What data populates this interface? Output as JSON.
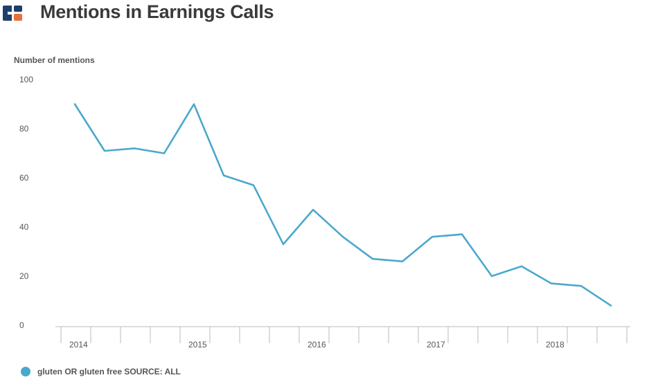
{
  "header": {
    "title": "Mentions in Earnings Calls",
    "logo_icon": "chart-logo-icon",
    "logo_colors": [
      "#1f3f6b",
      "#e8703a"
    ]
  },
  "colors": {
    "series": "#4aa8cc",
    "axis": "#bbbbbb",
    "text": "#555555"
  },
  "chart_data": {
    "type": "line",
    "title": "Mentions in Earnings Calls",
    "xlabel": "",
    "ylabel": "Number of mentions",
    "ylim": [
      0,
      100
    ],
    "yticks": [
      0,
      20,
      40,
      60,
      80,
      100
    ],
    "xticks": [
      "2014",
      "2015",
      "2016",
      "2017",
      "2018"
    ],
    "grid": false,
    "legend_position": "bottom-left",
    "series": [
      {
        "name": "gluten OR gluten free SOURCE: ALL",
        "color": "#4aa8cc",
        "x": [
          "2014 Q1",
          "2014 Q2",
          "2014 Q3",
          "2014 Q4",
          "2015 Q1",
          "2015 Q2",
          "2015 Q3",
          "2015 Q4",
          "2016 Q1",
          "2016 Q2",
          "2016 Q3",
          "2016 Q4",
          "2017 Q1",
          "2017 Q2",
          "2017 Q3",
          "2017 Q4",
          "2018 Q1",
          "2018 Q2",
          "2018 Q3"
        ],
        "values": [
          90,
          71,
          72,
          70,
          90,
          61,
          57,
          33,
          47,
          36,
          27,
          26,
          36,
          37,
          20,
          24,
          17,
          16,
          8
        ]
      }
    ]
  }
}
